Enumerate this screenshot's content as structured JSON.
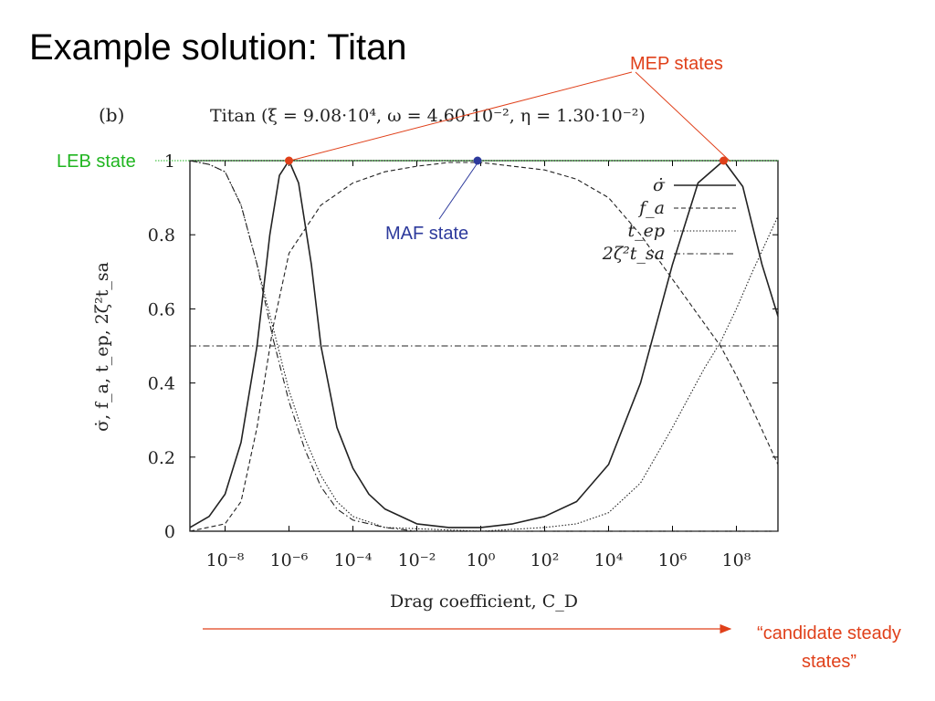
{
  "slide": {
    "title": "Example solution: Titan"
  },
  "annotations": {
    "mep": {
      "text": "MEP states",
      "color": "#e0401a"
    },
    "leb": {
      "text": "LEB state",
      "color": "#1fb51f"
    },
    "maf": {
      "text": "MAF state",
      "color": "#2d3a9c"
    },
    "candidate": {
      "line1": "“candidate steady",
      "line2": "states”",
      "color": "#e0401a"
    }
  },
  "markers": [
    {
      "name": "mep-state-point-left",
      "x_log10": -6.0,
      "y": 1.0,
      "color": "#e0401a"
    },
    {
      "name": "maf-state-point",
      "x_log10": -0.1,
      "y": 1.0,
      "color": "#2d3a9c"
    },
    {
      "name": "mep-state-point-right",
      "x_log10": 7.6,
      "y": 1.0,
      "color": "#e0401a"
    }
  ],
  "chart_data": {
    "type": "line",
    "panel_label": "(b)",
    "title": "Titan (ξ = 9.08·10⁴, ω = 4.60·10⁻², η = 1.30·10⁻²)",
    "xlabel": "Drag coefficient, C_D",
    "ylabel": "σ̇, f_a, t_ep, 2ζ²t_sa",
    "x_scale": "log",
    "xlim_log10": [
      -9.1,
      9.3
    ],
    "ylim": [
      0,
      1
    ],
    "x_ticks": [
      {
        "label": "10⁻⁸",
        "log10": -8
      },
      {
        "label": "10⁻⁶",
        "log10": -6
      },
      {
        "label": "10⁻⁴",
        "log10": -4
      },
      {
        "label": "10⁻²",
        "log10": -2
      },
      {
        "label": "10⁰",
        "log10": 0
      },
      {
        "label": "10²",
        "log10": 2
      },
      {
        "label": "10⁴",
        "log10": 4
      },
      {
        "label": "10⁶",
        "log10": 6
      },
      {
        "label": "10⁸",
        "log10": 8
      }
    ],
    "y_ticks": [
      {
        "label": "0",
        "value": 0
      },
      {
        "label": "0.2",
        "value": 0.2
      },
      {
        "label": "0.4",
        "value": 0.4
      },
      {
        "label": "0.6",
        "value": 0.6
      },
      {
        "label": "0.8",
        "value": 0.8
      },
      {
        "label": "1",
        "value": 1
      }
    ],
    "leb_line_y": 1.0,
    "series": [
      {
        "name": "σ̇",
        "dash": "solid",
        "width": 1.6,
        "points": [
          [
            -9.1,
            0.01
          ],
          [
            -8.5,
            0.04
          ],
          [
            -8.0,
            0.1
          ],
          [
            -7.5,
            0.24
          ],
          [
            -7.0,
            0.5
          ],
          [
            -6.6,
            0.8
          ],
          [
            -6.3,
            0.96
          ],
          [
            -6.0,
            1.0
          ],
          [
            -5.7,
            0.94
          ],
          [
            -5.3,
            0.72
          ],
          [
            -5.0,
            0.5
          ],
          [
            -4.5,
            0.28
          ],
          [
            -4.0,
            0.17
          ],
          [
            -3.5,
            0.1
          ],
          [
            -3.0,
            0.06
          ],
          [
            -2.0,
            0.02
          ],
          [
            -1.0,
            0.01
          ],
          [
            0.0,
            0.01
          ],
          [
            1.0,
            0.02
          ],
          [
            2.0,
            0.04
          ],
          [
            3.0,
            0.08
          ],
          [
            4.0,
            0.18
          ],
          [
            5.0,
            0.4
          ],
          [
            6.0,
            0.72
          ],
          [
            6.8,
            0.94
          ],
          [
            7.6,
            1.0
          ],
          [
            8.2,
            0.93
          ],
          [
            8.8,
            0.72
          ],
          [
            9.3,
            0.58
          ]
        ]
      },
      {
        "name": "f_a",
        "dash": "dashed",
        "width": 1.1,
        "points": [
          [
            -9.1,
            0.0
          ],
          [
            -8.0,
            0.02
          ],
          [
            -7.5,
            0.08
          ],
          [
            -7.0,
            0.28
          ],
          [
            -6.5,
            0.55
          ],
          [
            -6.0,
            0.75
          ],
          [
            -5.0,
            0.88
          ],
          [
            -4.0,
            0.94
          ],
          [
            -3.0,
            0.97
          ],
          [
            -2.0,
            0.985
          ],
          [
            -1.0,
            0.995
          ],
          [
            0.0,
            0.995
          ],
          [
            1.0,
            0.985
          ],
          [
            2.0,
            0.975
          ],
          [
            3.0,
            0.95
          ],
          [
            4.0,
            0.9
          ],
          [
            5.0,
            0.8
          ],
          [
            6.0,
            0.68
          ],
          [
            7.0,
            0.56
          ],
          [
            7.5,
            0.5
          ],
          [
            8.0,
            0.42
          ],
          [
            8.5,
            0.33
          ],
          [
            9.3,
            0.18
          ]
        ]
      },
      {
        "name": "t_ep",
        "dash": "dotted",
        "width": 1.1,
        "points": [
          [
            -9.1,
            1.0
          ],
          [
            -8.5,
            0.99
          ],
          [
            -8.0,
            0.97
          ],
          [
            -7.5,
            0.88
          ],
          [
            -7.0,
            0.72
          ],
          [
            -6.5,
            0.55
          ],
          [
            -6.0,
            0.38
          ],
          [
            -5.5,
            0.25
          ],
          [
            -5.0,
            0.15
          ],
          [
            -4.5,
            0.08
          ],
          [
            -4.0,
            0.04
          ],
          [
            -3.0,
            0.01
          ],
          [
            0.0,
            0.0
          ],
          [
            2.0,
            0.01
          ],
          [
            3.0,
            0.02
          ],
          [
            4.0,
            0.05
          ],
          [
            5.0,
            0.13
          ],
          [
            6.0,
            0.28
          ],
          [
            7.0,
            0.44
          ],
          [
            7.5,
            0.51
          ],
          [
            8.0,
            0.6
          ],
          [
            8.5,
            0.7
          ],
          [
            9.3,
            0.85
          ]
        ]
      },
      {
        "name": "2ζ²t_sa",
        "dash": "dashdot",
        "width": 1.1,
        "points": [
          [
            -9.1,
            1.0
          ],
          [
            -8.5,
            0.99
          ],
          [
            -8.0,
            0.97
          ],
          [
            -7.5,
            0.88
          ],
          [
            -7.0,
            0.72
          ],
          [
            -6.5,
            0.52
          ],
          [
            -6.0,
            0.35
          ],
          [
            -5.5,
            0.22
          ],
          [
            -5.0,
            0.12
          ],
          [
            -4.5,
            0.06
          ],
          [
            -4.0,
            0.03
          ],
          [
            -3.0,
            0.01
          ],
          [
            -2.0,
            0.0
          ],
          [
            9.3,
            0.0
          ]
        ]
      },
      {
        "name": "reference 0.5",
        "dash": "dashdot",
        "width": 1.1,
        "in_legend": false,
        "points": [
          [
            -9.1,
            0.5
          ],
          [
            9.3,
            0.5
          ]
        ]
      }
    ]
  }
}
